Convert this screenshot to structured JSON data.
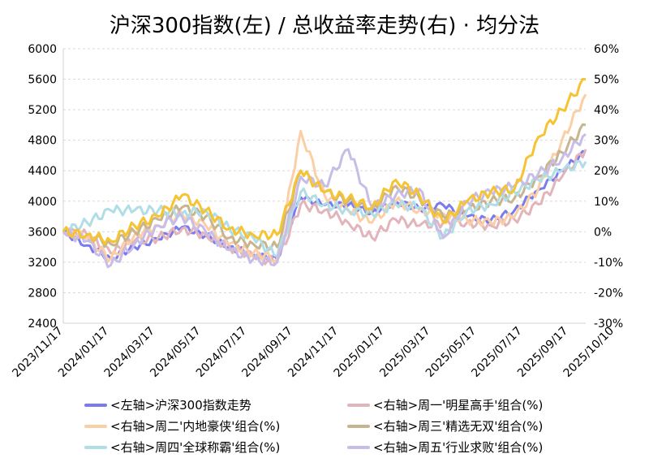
{
  "chart_data": {
    "type": "line",
    "title": "沪深300指数(左)  /  总收益率走势(右) · 均分法",
    "left_axis": {
      "ylim": [
        2400,
        6000
      ],
      "ticks": [
        "6000",
        "5600",
        "5200",
        "4800",
        "4400",
        "4000",
        "3600",
        "3200",
        "2800",
        "2400"
      ]
    },
    "right_axis": {
      "ylim": [
        -30,
        60
      ],
      "ticks": [
        "60%",
        "50%",
        "40%",
        "30%",
        "20%",
        "10%",
        "0%",
        "-10%",
        "-20%",
        "-30%"
      ]
    },
    "x_ticks": [
      "2023/11/17",
      "2024/01/17",
      "2024/03/17",
      "2024/05/17",
      "2024/07/17",
      "2024/09/17",
      "2024/11/17",
      "2025/01/17",
      "2025/03/17",
      "2025/05/17",
      "2025/07/17",
      "2025/09/17",
      "2025/10/10"
    ],
    "last_tick_color": "#ff0000",
    "negative_tick_color": "#00cc00",
    "x_count": 23,
    "series": [
      {
        "name": "<左轴>沪深300指数走势",
        "axis": "left",
        "color": "#7b7bf0",
        "values": [
          3600,
          3420,
          3250,
          3400,
          3500,
          3660,
          3550,
          3400,
          3300,
          3240,
          4050,
          3950,
          3950,
          3850,
          4000,
          3900,
          3950,
          3800,
          3750,
          3880,
          4150,
          4400,
          4650
        ]
      },
      {
        "name": "<右轴>周一'明星高手'组合(%)",
        "axis": "right",
        "color": "#e2b4bc",
        "values": [
          0,
          -1,
          -7,
          -3,
          -2,
          1,
          -1,
          -5,
          -8,
          -10,
          9,
          7,
          3,
          -2,
          4,
          2,
          3,
          3,
          2,
          4,
          9,
          18,
          27
        ]
      },
      {
        "name": "<右轴>周二'内地豪侠'组合(%)",
        "axis": "right",
        "color": "#fbcfa6",
        "values": [
          0,
          -2,
          -9,
          -1,
          2,
          6,
          2,
          -4,
          -7,
          -9,
          33,
          12,
          7,
          3,
          10,
          7,
          6,
          4,
          3,
          5,
          14,
          30,
          45
        ]
      },
      {
        "name": "<右轴>周三'精选无双'组合(%)",
        "axis": "right",
        "color": "#c6b58f",
        "values": [
          0,
          -1,
          -4,
          0,
          4,
          8,
          5,
          -2,
          -4,
          -5,
          20,
          13,
          10,
          7,
          15,
          11,
          5,
          7,
          10,
          11,
          18,
          26,
          35
        ]
      },
      {
        "name": "<右轴>周四'全球称霸'组合(%)",
        "axis": "right",
        "color": "#b1dde6",
        "values": [
          0,
          3,
          7,
          7,
          7,
          6,
          7,
          1,
          -2,
          -8,
          13,
          9,
          7,
          6,
          9,
          8,
          -2,
          7,
          9,
          13,
          17,
          20,
          23
        ]
      },
      {
        "name": "<右轴>周五'行业求败'组合(%)",
        "axis": "right",
        "color": "#c7bde6",
        "values": [
          0,
          -3,
          -11,
          -4,
          2,
          5,
          0,
          -6,
          -9,
          -10,
          18,
          15,
          27,
          8,
          12,
          14,
          -2,
          10,
          13,
          15,
          19,
          24,
          32
        ]
      },
      {
        "name": "",
        "axis": "right",
        "color": "#f6c333",
        "values": [
          0,
          -1,
          -3,
          2,
          5,
          12,
          7,
          1,
          -1,
          -1,
          20,
          13,
          11,
          8,
          17,
          12,
          3,
          10,
          13,
          14,
          31,
          40,
          50
        ]
      }
    ],
    "legend": [
      {
        "label": "<左轴>沪深300指数走势",
        "color": "#7b7bf0"
      },
      {
        "label": "<右轴>周一'明星高手'组合(%)",
        "color": "#e2b4bc"
      },
      {
        "label": "<右轴>周二'内地豪侠'组合(%)",
        "color": "#fbcfa6"
      },
      {
        "label": "<右轴>周三'精选无双'组合(%)",
        "color": "#c6b58f"
      },
      {
        "label": "<右轴>周四'全球称霸'组合(%)",
        "color": "#b1dde6"
      },
      {
        "label": "<右轴>周五'行业求败'组合(%)",
        "color": "#c7bde6"
      }
    ],
    "grid": true
  }
}
